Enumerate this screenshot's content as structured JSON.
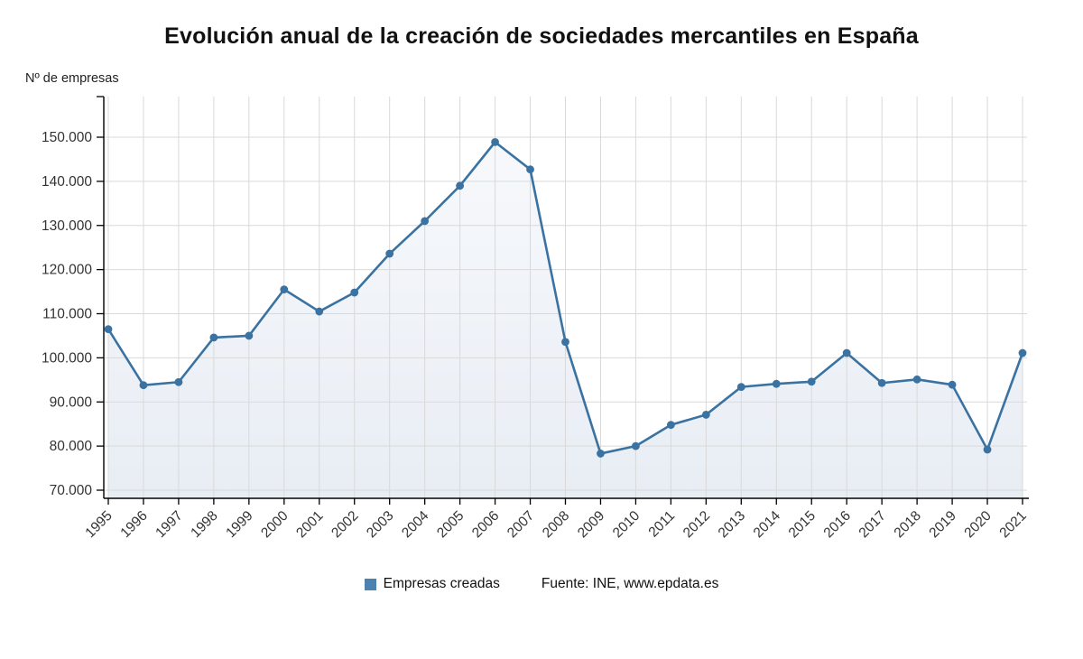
{
  "title": "Evolución anual de la creación de sociedades mercantiles en España",
  "axis_label": "Nº de empresas",
  "legend": {
    "label": "Empresas creadas",
    "source": "Fuente: INE, www.epdata.es"
  },
  "colors": {
    "line": "#3a72a1",
    "marker": "#3a72a1",
    "legend_square": "#4d82b0",
    "grid": "#d9d9d9",
    "axis": "#000000",
    "tick_label": "#333333",
    "area_top": "#f7f9fc",
    "area_bottom": "#e8edf4"
  },
  "chart_data": {
    "type": "line",
    "title": "Evolución anual de la creación de sociedades mercantiles en España",
    "xlabel": "",
    "ylabel": "Nº de empresas",
    "x": [
      1995,
      1996,
      1997,
      1998,
      1999,
      2000,
      2001,
      2002,
      2003,
      2004,
      2005,
      2006,
      2007,
      2008,
      2009,
      2010,
      2011,
      2012,
      2013,
      2014,
      2015,
      2016,
      2017,
      2018,
      2019,
      2020,
      2021
    ],
    "series": [
      {
        "name": "Empresas creadas",
        "values": [
          106500,
          93800,
          94500,
          104600,
          105000,
          115500,
          110500,
          114800,
          123600,
          131000,
          139000,
          148900,
          142700,
          103600,
          78300,
          80000,
          84800,
          87100,
          93400,
          94100,
          94600,
          101100,
          94300,
          95100,
          93900,
          79200,
          101100
        ]
      }
    ],
    "ylim": [
      70000,
      150000
    ],
    "ytick_step": 10000,
    "grid": true,
    "legend_position": "bottom",
    "number_format": "es-thousands-dot"
  }
}
